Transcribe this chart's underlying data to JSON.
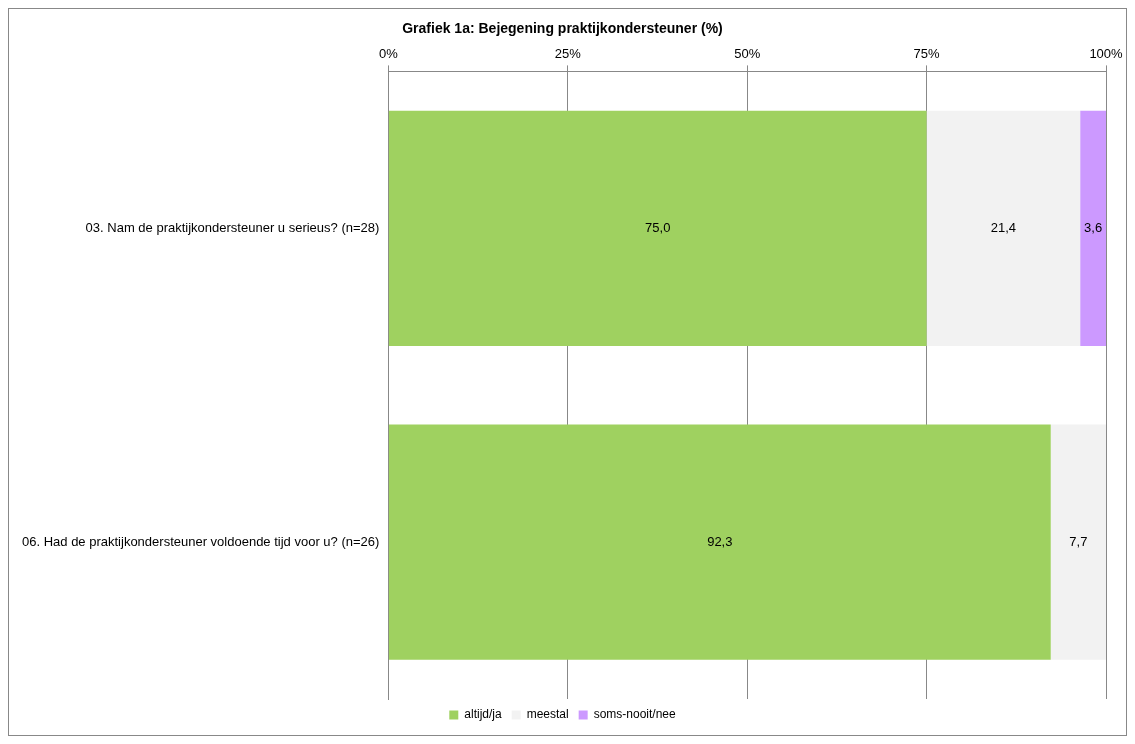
{
  "chart_data": {
    "type": "bar",
    "orientation": "horizontal",
    "stacked": true,
    "title": "Grafiek 1a: Bejegening praktijkondersteuner (%)",
    "categories": [
      "03. Nam de praktijkondersteuner u serieus? (n=28)",
      "06. Had de praktijkondersteuner voldoende tijd voor u? (n=26)"
    ],
    "series": [
      {
        "name": "altijd/ja",
        "color": "#9fd160",
        "values": [
          75.0,
          92.3
        ],
        "value_labels": [
          "75,0",
          "92,3"
        ]
      },
      {
        "name": "meestal",
        "color": "#f2f2f2",
        "values": [
          21.4,
          7.7
        ],
        "value_labels": [
          "21,4",
          "7,7"
        ]
      },
      {
        "name": "soms-nooit/nee",
        "color": "#cc99ff",
        "values": [
          3.6,
          null
        ],
        "value_labels": [
          "3,6",
          null
        ]
      }
    ],
    "xlim": [
      0,
      100
    ],
    "xticks": [
      {
        "value": 0,
        "label": "0%"
      },
      {
        "value": 25,
        "label": "25%"
      },
      {
        "value": 50,
        "label": "50%"
      },
      {
        "value": 75,
        "label": "75%"
      },
      {
        "value": 100,
        "label": "100%"
      }
    ],
    "grid": "x",
    "legend": "bottom"
  }
}
